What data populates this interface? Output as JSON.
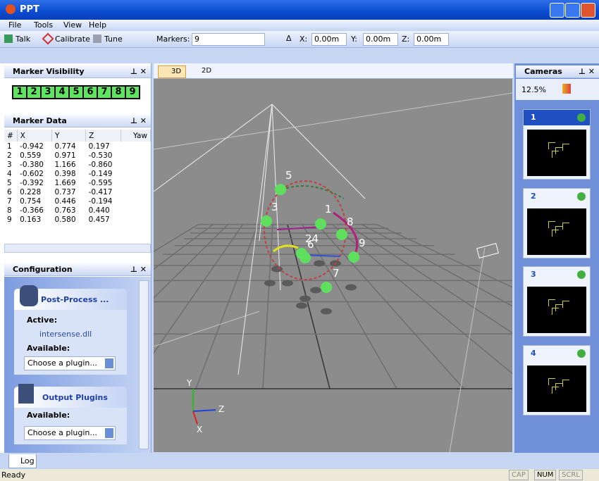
{
  "window": {
    "title": "PPT"
  },
  "menu": [
    "File",
    "Tools",
    "View",
    "Help"
  ],
  "toolbar": {
    "buttons": [
      "Talk",
      "Calibrate",
      "Tune"
    ],
    "markers_label": "Markers:",
    "markers_value": "9",
    "position": [
      {
        "label": "X:",
        "value": "0.00m"
      },
      {
        "label": "Y:",
        "value": "0.00m"
      },
      {
        "label": "Z:",
        "value": "0.00m"
      }
    ]
  },
  "marker_visibility": {
    "title": "Marker Visibility",
    "markers": [
      "1",
      "2",
      "3",
      "4",
      "5",
      "6",
      "7",
      "8",
      "9"
    ]
  },
  "marker_data": {
    "title": "Marker Data",
    "columns": [
      "#",
      "X",
      "Y",
      "Z",
      "Yaw"
    ],
    "rows": [
      [
        "1",
        "-0.942",
        "0.774",
        "0.197"
      ],
      [
        "2",
        "0.559",
        "0.971",
        "-0.530"
      ],
      [
        "3",
        "-0.380",
        "1.166",
        "-0.860"
      ],
      [
        "4",
        "-0.602",
        "0.398",
        "-0.149"
      ],
      [
        "5",
        "-0.392",
        "1.669",
        "-0.595"
      ],
      [
        "6",
        "0.228",
        "0.737",
        "-0.417"
      ],
      [
        "7",
        "0.754",
        "0.446",
        "-0.194"
      ],
      [
        "8",
        "-0.366",
        "0.763",
        "0.440"
      ],
      [
        "9",
        "0.163",
        "0.580",
        "0.457"
      ]
    ]
  },
  "configuration": {
    "title": "Configuration",
    "post_process": {
      "title": "Post-Process ...",
      "active_label": "Active:",
      "active_plugin": "intersense.dll",
      "available_label": "Available:",
      "dropdown": "Choose a plugin..."
    },
    "output_plugins": {
      "title": "Output Plugins",
      "available_label": "Available:",
      "dropdown": "Choose a plugin..."
    }
  },
  "viewport": {
    "tabs": [
      "3D",
      "2D"
    ],
    "marker_labels": [
      "5",
      "3",
      "1",
      "8",
      "24",
      "6",
      "9",
      "7"
    ],
    "axes": [
      "Y",
      "Z",
      "X"
    ]
  },
  "cameras": {
    "title": "Cameras",
    "zoom": "12.5%",
    "cards": [
      "1",
      "2",
      "3",
      "4"
    ]
  },
  "log_tab": "Log",
  "status": {
    "text": "Ready",
    "indicators": [
      "CAP",
      "NUM",
      "SCRL"
    ]
  }
}
